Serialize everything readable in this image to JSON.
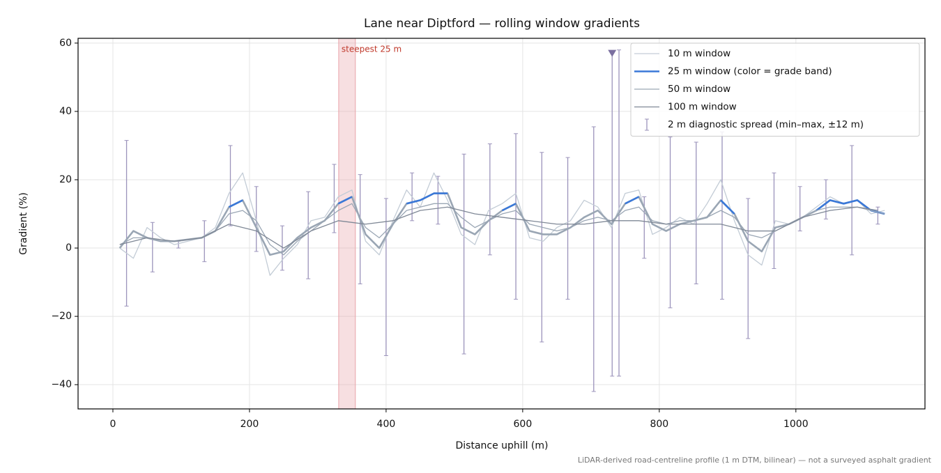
{
  "chart_data": {
    "type": "line",
    "title": "Lane near Diptford — rolling window gradients",
    "xlabel": "Distance uphill (m)",
    "ylabel": "Gradient (%)",
    "footnote": "LiDAR-derived road-centreline profile (1 m DTM, bilinear) — not a surveyed asphalt gradient",
    "xlim": [
      -51,
      1189
    ],
    "ylim": [
      -47.1,
      61.4
    ],
    "xticks": [
      0,
      200,
      400,
      600,
      800,
      1000
    ],
    "yticks": [
      {
        "value": -40,
        "label": "−40"
      },
      {
        "value": -20,
        "label": "−20"
      },
      0,
      20,
      40,
      60
    ],
    "grid": true,
    "legend": "upper right",
    "series": [
      {
        "name": "10 m window",
        "color": "#c3ccd6",
        "width": 1.3,
        "x": [
          10,
          30,
          50,
          70,
          90,
          110,
          130,
          150,
          170,
          190,
          210,
          230,
          250,
          270,
          290,
          310,
          330,
          350,
          370,
          390,
          410,
          430,
          450,
          470,
          490,
          510,
          530,
          550,
          570,
          590,
          610,
          630,
          650,
          670,
          690,
          710,
          730,
          750,
          770,
          790,
          810,
          830,
          850,
          870,
          890,
          910,
          930,
          950,
          970,
          990,
          1010,
          1030,
          1050,
          1070,
          1090,
          1110,
          1130
        ],
        "values": [
          0,
          -3,
          6,
          3,
          1,
          2,
          3,
          6,
          16,
          22,
          8,
          -8,
          -3,
          1,
          8,
          9,
          15,
          17,
          2,
          -2,
          8,
          17,
          12,
          22,
          14,
          4,
          1,
          11,
          13,
          16,
          3,
          2,
          6,
          8,
          14,
          12,
          6,
          16,
          17,
          4,
          6,
          9,
          7,
          13,
          20,
          8,
          -2,
          -5,
          8,
          7,
          9,
          12,
          15,
          13,
          14,
          10,
          11
        ]
      },
      {
        "name": "25 m window (color = grade band)",
        "color": "#9aa6b4",
        "band_color": "#3a78d8",
        "band_threshold": 10,
        "width": 2.6,
        "x": [
          10,
          30,
          50,
          70,
          90,
          110,
          130,
          150,
          170,
          190,
          210,
          230,
          250,
          270,
          290,
          310,
          330,
          350,
          370,
          390,
          410,
          430,
          450,
          470,
          490,
          510,
          530,
          550,
          570,
          590,
          610,
          630,
          650,
          670,
          690,
          710,
          730,
          750,
          770,
          790,
          810,
          830,
          850,
          870,
          890,
          910,
          930,
          950,
          970,
          990,
          1010,
          1030,
          1050,
          1070,
          1090,
          1110,
          1130
        ],
        "values": [
          0,
          5,
          3,
          2,
          2,
          2.5,
          3,
          5,
          12,
          14,
          6,
          -2,
          -1,
          3,
          6,
          8,
          13,
          15,
          4,
          0,
          7,
          13,
          14,
          16,
          16,
          6,
          4,
          8,
          11,
          13,
          5,
          4,
          4,
          6,
          9,
          11,
          7,
          13,
          15,
          7,
          5,
          7,
          8,
          9,
          14,
          10,
          2,
          -1,
          6,
          7,
          9,
          11,
          14,
          13,
          14,
          11,
          10
        ]
      },
      {
        "name": "50 m window",
        "color": "#9aa6b4",
        "width": 1.3,
        "x": [
          10,
          30,
          50,
          70,
          90,
          110,
          130,
          150,
          170,
          190,
          210,
          230,
          250,
          270,
          290,
          310,
          330,
          350,
          370,
          390,
          410,
          430,
          450,
          470,
          490,
          510,
          530,
          550,
          570,
          590,
          610,
          630,
          650,
          670,
          690,
          710,
          730,
          750,
          770,
          790,
          810,
          830,
          850,
          870,
          890,
          910,
          930,
          950,
          970,
          990,
          1010,
          1030,
          1050,
          1070,
          1090,
          1110,
          1130
        ],
        "values": [
          1,
          3,
          3,
          2,
          2,
          2.5,
          3,
          5,
          10,
          11,
          8,
          1,
          -2,
          2,
          5,
          8,
          11,
          13,
          6,
          3,
          7,
          11,
          12,
          13,
          13,
          9,
          6,
          8,
          10,
          11,
          7,
          6,
          5,
          6,
          8,
          9,
          8,
          11,
          12,
          8,
          7,
          8,
          8,
          9,
          11,
          9,
          4,
          3,
          5,
          7,
          9,
          11,
          12,
          12,
          12,
          11,
          10
        ]
      },
      {
        "name": "100 m window",
        "color": "#7f8896",
        "width": 1.3,
        "x": [
          10,
          50,
          90,
          130,
          170,
          210,
          250,
          290,
          330,
          370,
          410,
          450,
          490,
          530,
          570,
          610,
          650,
          690,
          730,
          770,
          810,
          850,
          890,
          930,
          970,
          1010,
          1050,
          1090,
          1120
        ],
        "values": [
          1,
          3,
          2,
          3,
          7,
          5,
          0,
          5,
          8,
          7,
          8,
          11,
          12,
          10,
          9,
          8,
          7,
          7,
          8,
          8,
          7,
          7,
          7,
          5,
          5,
          9,
          11,
          12,
          11
        ]
      }
    ],
    "spread": {
      "name": "2 m diagnostic spread (min–max, ±12 m)",
      "color": "#9b93bb",
      "x": [
        20,
        58,
        96,
        134,
        172,
        210,
        248,
        286,
        324,
        362,
        400,
        438,
        476,
        514,
        552,
        590,
        628,
        666,
        704,
        731,
        741,
        778,
        816,
        854,
        892,
        930,
        968,
        1006,
        1044,
        1082,
        1120
      ],
      "low": [
        -17,
        -7,
        0,
        -4,
        6.5,
        -1,
        -6.5,
        -9,
        4.5,
        -10.5,
        -31.5,
        8,
        7,
        -31,
        -2,
        -15,
        -27.5,
        -15,
        -42,
        -37.5,
        -37.5,
        -3,
        -17.5,
        -10.5,
        -15,
        -26.5,
        -6,
        5,
        8.5,
        -2,
        7
      ],
      "high": [
        31.5,
        7.5,
        2,
        8,
        30,
        18,
        6.5,
        16.5,
        24.5,
        21.5,
        14.5,
        22,
        21,
        27.5,
        30.5,
        33.5,
        28,
        26.5,
        35.5,
        57,
        58,
        15,
        32.5,
        31,
        34,
        14.5,
        22,
        18,
        20,
        30,
        12
      ]
    },
    "marker": {
      "x": 731,
      "y": 57,
      "color": "#7b6fa0"
    },
    "highlight": {
      "label": "steepest 25 m",
      "x": [
        330.6,
        355
      ],
      "color": "#e8a3a8",
      "label_color": "#c0392b"
    }
  }
}
